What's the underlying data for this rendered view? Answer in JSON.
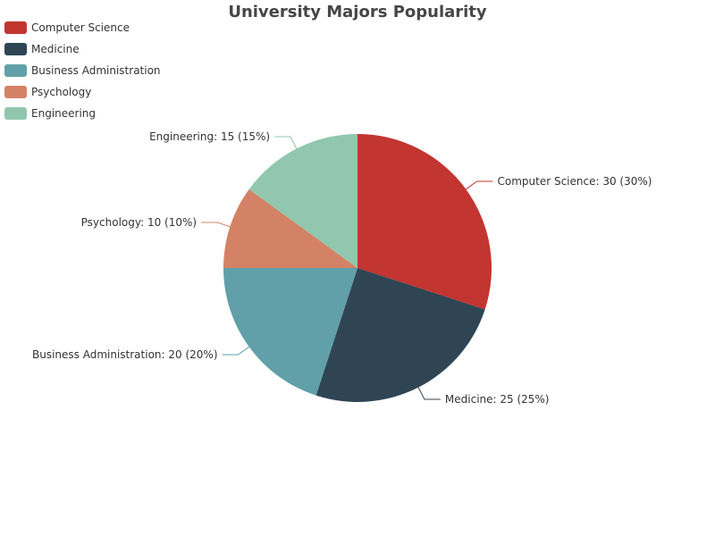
{
  "chart_data": {
    "type": "pie",
    "title": "University Majors Popularity",
    "legend_position": "top-left",
    "slices": [
      {
        "name": "Computer Science",
        "value": 30,
        "percent": 30,
        "color": "#c23531",
        "label": "Computer Science: 30 (30%)"
      },
      {
        "name": "Medicine",
        "value": 25,
        "percent": 25,
        "color": "#2f4554",
        "label": "Medicine: 25 (25%)"
      },
      {
        "name": "Business Administration",
        "value": 20,
        "percent": 20,
        "color": "#61a0a8",
        "label": "Business Administration: 20 (20%)"
      },
      {
        "name": "Psychology",
        "value": 10,
        "percent": 10,
        "color": "#d48265",
        "label": "Psychology: 10 (10%)"
      },
      {
        "name": "Engineering",
        "value": 15,
        "percent": 15,
        "color": "#91c7ae",
        "label": "Engineering: 15 (15%)"
      }
    ]
  }
}
